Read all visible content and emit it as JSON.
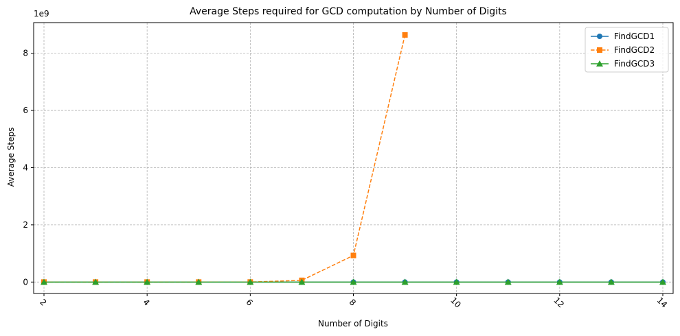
{
  "chart_data": {
    "type": "line",
    "title": "Average Steps required for GCD computation by Number of Digits",
    "xlabel": "Number of Digits",
    "ylabel": "Average Steps",
    "y_offset_text": "1e9",
    "y_scale": 1000000000,
    "xlim": [
      1.8,
      14.2
    ],
    "ylim": [
      -400000000,
      9070000000
    ],
    "x_ticks": [
      2,
      4,
      6,
      8,
      10,
      12,
      14
    ],
    "y_ticks": [
      0,
      2,
      4,
      6,
      8
    ],
    "grid": true,
    "legend_position": "top-right",
    "series": [
      {
        "name": "FindGCD1",
        "color": "#1f77b4",
        "marker": "circle",
        "linestyle": "solid",
        "x": [
          2,
          3,
          4,
          5,
          6,
          7,
          8,
          9,
          10,
          11,
          12,
          13,
          14
        ],
        "y": [
          3,
          5,
          7,
          9,
          11,
          13,
          15,
          17,
          19,
          21,
          23,
          25,
          27
        ]
      },
      {
        "name": "FindGCD2",
        "color": "#ff7f0e",
        "marker": "square",
        "linestyle": "dashed",
        "x": [
          2,
          3,
          4,
          5,
          6,
          7,
          8,
          9
        ],
        "y": [
          90,
          900,
          9000,
          90000,
          900000,
          60000000,
          930000000,
          8640000000
        ]
      },
      {
        "name": "FindGCD3",
        "color": "#2ca02c",
        "marker": "triangle",
        "linestyle": "solid",
        "x": [
          2,
          3,
          4,
          5,
          6,
          7,
          8,
          9,
          10,
          11,
          12,
          13,
          14
        ],
        "y": [
          2,
          3,
          4,
          5,
          6,
          7,
          8,
          9,
          10,
          11,
          12,
          13,
          14
        ]
      }
    ]
  }
}
